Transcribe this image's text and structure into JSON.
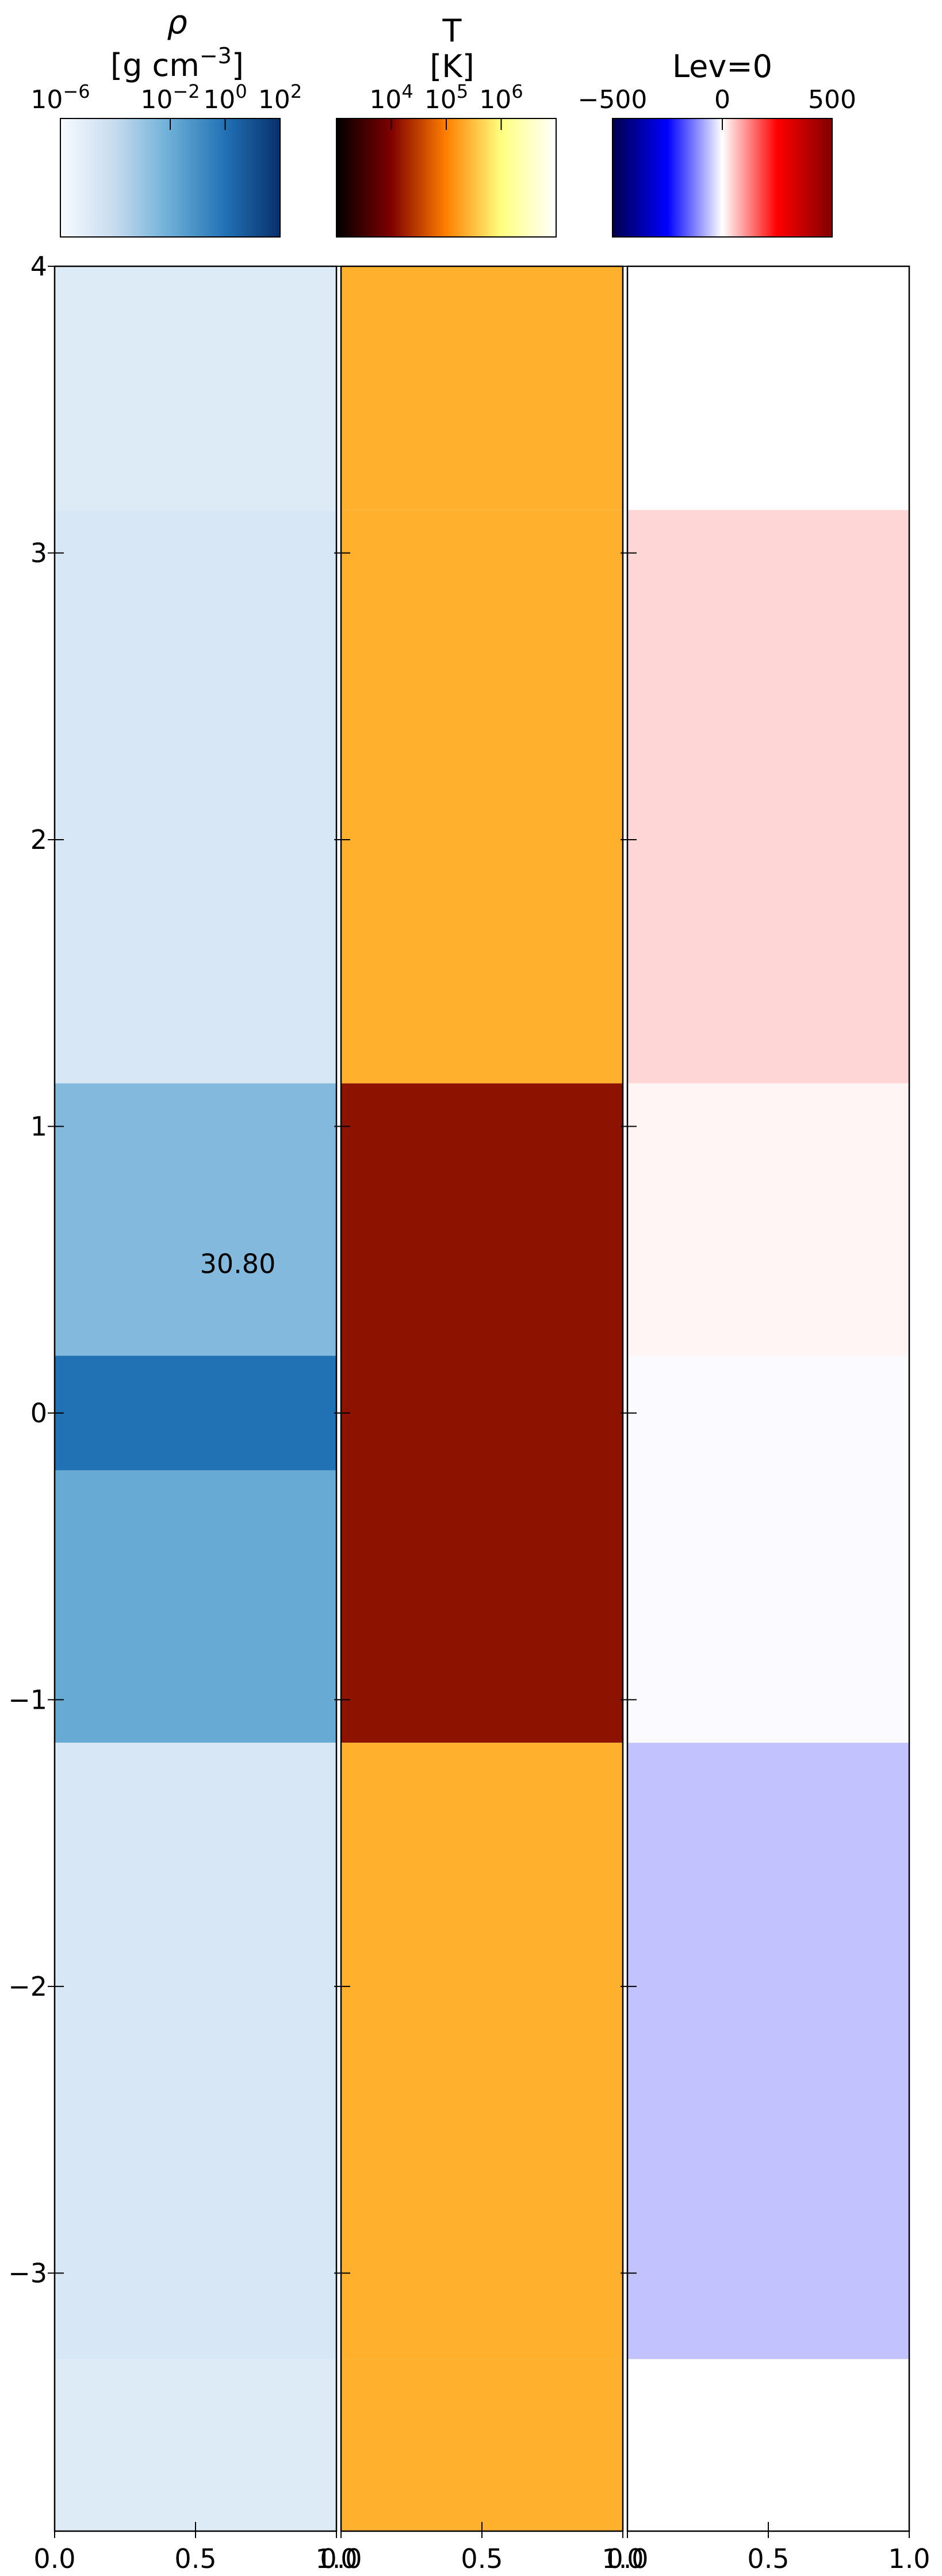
{
  "chart_data": [
    {
      "type": "heatmap",
      "quantity": "density",
      "colorbar": {
        "title_symbol": "ρ",
        "title_unit_base": "[g cm",
        "title_unit_exp": "−3",
        "title_unit_close": "]",
        "colormap": "Blues",
        "scale": "log",
        "range": [
          1e-06,
          100
        ],
        "ticks": [
          {
            "base": "10",
            "exp": "−6"
          },
          {
            "base": "10",
            "exp": "−2"
          },
          {
            "base": "10",
            "exp": "0"
          },
          {
            "base": "10",
            "exp": "2"
          }
        ],
        "tick_exponents": [
          -6,
          -2,
          0,
          2
        ]
      },
      "annotation": "30.80",
      "annotation_pos": {
        "x": 0.65,
        "y": 0.52
      },
      "xlim": [
        0,
        1
      ],
      "ylim": [
        -3.9,
        4
      ],
      "regions": [
        {
          "y_from": 3.15,
          "y_to": 4.0,
          "value": 1e-05
        },
        {
          "y_from": 1.15,
          "y_to": 3.15,
          "value": 3e-05
        },
        {
          "y_from": 0.2,
          "y_to": 1.15,
          "value": 0.01
        },
        {
          "y_from": -0.2,
          "y_to": 0.2,
          "value": 1.0
        },
        {
          "y_from": -1.15,
          "y_to": -0.2,
          "value": 0.03
        },
        {
          "y_from": -3.3,
          "y_to": -1.15,
          "value": 3e-05
        },
        {
          "y_from": -3.9,
          "y_to": -3.3,
          "value": 1e-05
        }
      ]
    },
    {
      "type": "heatmap",
      "quantity": "temperature",
      "colorbar": {
        "title_symbol": "T",
        "title_unit_base": "[K]",
        "title_unit_exp": "",
        "title_unit_close": "",
        "colormap": "afmhot",
        "scale": "log",
        "range": [
          1000,
          10000000
        ],
        "ticks": [
          {
            "base": "10",
            "exp": "4"
          },
          {
            "base": "10",
            "exp": "5"
          },
          {
            "base": "10",
            "exp": "6"
          }
        ],
        "tick_exponents": [
          4,
          5,
          6
        ]
      },
      "xlim": [
        0,
        1
      ],
      "ylim": [
        -3.9,
        4
      ],
      "regions": [
        {
          "y_from": 3.15,
          "y_to": 4.0,
          "value": 500000
        },
        {
          "y_from": 1.15,
          "y_to": 3.15,
          "value": 500000
        },
        {
          "y_from": -1.15,
          "y_to": 1.15,
          "value": 15000
        },
        {
          "y_from": -3.3,
          "y_to": -1.15,
          "value": 500000
        },
        {
          "y_from": -3.9,
          "y_to": -3.3,
          "value": 500000
        }
      ]
    },
    {
      "type": "heatmap",
      "quantity": "Lev",
      "colorbar": {
        "title_symbol": "Lev=0",
        "title_unit_base": "",
        "title_unit_exp": "",
        "title_unit_close": "",
        "colormap": "seismic",
        "scale": "linear",
        "range": [
          -500,
          500
        ],
        "ticks": [
          {
            "base": "−500",
            "exp": ""
          },
          {
            "base": "0",
            "exp": ""
          },
          {
            "base": "500",
            "exp": ""
          }
        ],
        "tick_values": [
          -500,
          0,
          500
        ]
      },
      "xlim": [
        0,
        1
      ],
      "ylim": [
        -3.9,
        4
      ],
      "regions": [
        {
          "y_from": 3.15,
          "y_to": 4.0,
          "value": 0
        },
        {
          "y_from": 1.15,
          "y_to": 3.15,
          "value": 40
        },
        {
          "y_from": 0.2,
          "y_to": 1.15,
          "value": 10
        },
        {
          "y_from": -1.15,
          "y_to": 0.2,
          "value": -5
        },
        {
          "y_from": -3.3,
          "y_to": -1.15,
          "value": -60
        },
        {
          "y_from": -3.9,
          "y_to": -3.3,
          "value": 0
        }
      ]
    }
  ],
  "axes": {
    "y_ticks": [
      "4",
      "3",
      "2",
      "1",
      "0",
      "−1",
      "−2",
      "−3"
    ],
    "y_tick_values": [
      4,
      3,
      2,
      1,
      0,
      -1,
      -2,
      -3
    ],
    "x_ticks": [
      "0.0",
      "0.5",
      "1.0"
    ],
    "x_tick_values": [
      0,
      0.5,
      1.0
    ]
  }
}
